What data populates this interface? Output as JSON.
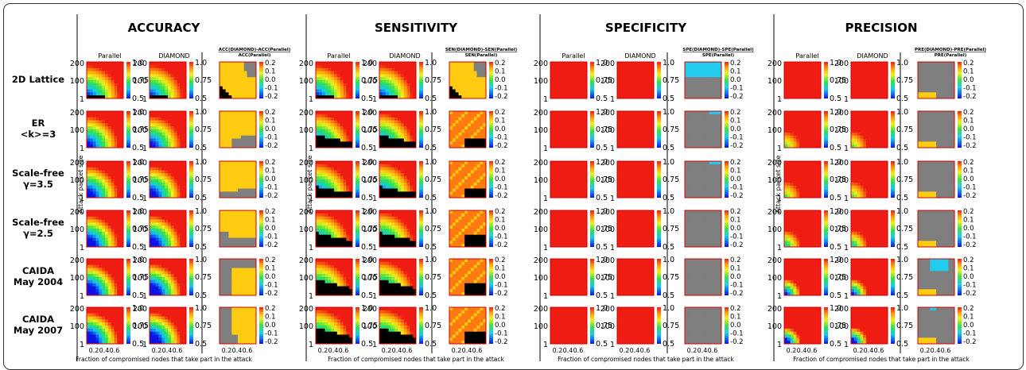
{
  "chart_data": {
    "type": "heatmap",
    "panel_titles": [
      "ACCURACY",
      "SENSITIVITY",
      "SPECIFICITY",
      "PRECISION"
    ],
    "column_labels": [
      [
        "Parallel",
        "DIAMOND",
        "ACC(DIAMOND)-ACC(Parallel)",
        "ACC(Parallel)"
      ],
      [
        "Parallel",
        "DIAMOND",
        "SEN(DIAMOND)-SEN(Parallel)",
        "SEN(Parallel)"
      ],
      [
        "Parallel",
        "DIAMOND",
        "SPE(DIAMOND)-SPE(Parallel)",
        "SPE(Parallel)"
      ],
      [
        "Parallel",
        "DIAMOND",
        "PRE(DIAMOND)-PRE(Parallel)",
        "PRE(Parallel)"
      ]
    ],
    "row_labels": [
      [
        "2D Lattice"
      ],
      [
        "ER",
        "<k>=3"
      ],
      [
        "Scale-free",
        "γ=3.5"
      ],
      [
        "Scale-free",
        "γ=2.5"
      ],
      [
        "CAIDA",
        "May 2004"
      ],
      [
        "CAIDA",
        "May 2007"
      ]
    ],
    "ylabel": "Attack packet size",
    "xlabel": "Fraction of compromised nodes that take part in the attack",
    "y_ticks": [
      "200",
      "100",
      "1"
    ],
    "x_ticks": [
      "0.2",
      "0.4",
      "0.6"
    ],
    "value_colorbar_ticks": [
      "1.0",
      "0.75",
      "0.5"
    ],
    "diff_colorbar_ticks": [
      "0.2",
      "0.1",
      "0.0",
      "-0.1",
      "-0.2"
    ],
    "value_range": [
      0.5,
      1.0
    ],
    "diff_range": [
      -0.2,
      0.2
    ]
  },
  "colors": {
    "heat_high": "#ee1c12",
    "heat_low": "#1c22e8",
    "no_difference": "#7f7f7f",
    "positive_difference": "#ffcc11",
    "negative_difference": "#22ccee",
    "divider": "#000000"
  }
}
